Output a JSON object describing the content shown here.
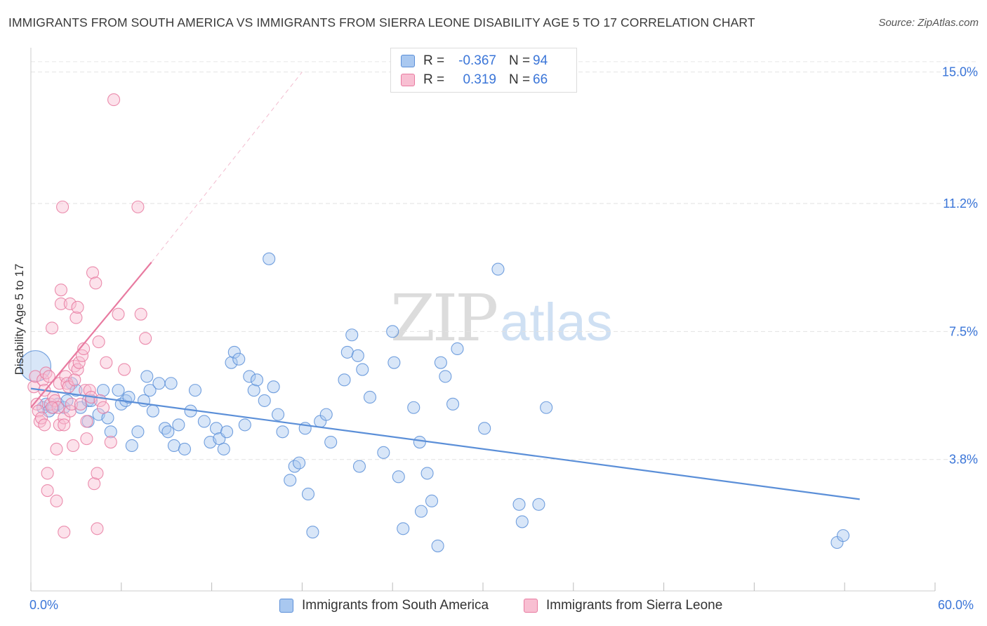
{
  "title": "IMMIGRANTS FROM SOUTH AMERICA VS IMMIGRANTS FROM SIERRA LEONE DISABILITY AGE 5 TO 17 CORRELATION CHART",
  "source": "Source: ZipAtlas.com",
  "watermark": {
    "zip": "ZIP",
    "atlas": "atlas"
  },
  "legend": {
    "rows": [
      {
        "r_label": "R =",
        "r_value": "-0.367",
        "n_label": "N =",
        "n_value": "94",
        "color": "#a9c8f0",
        "border": "#5b8fd8"
      },
      {
        "r_label": "R =",
        "r_value": "0.319",
        "n_label": "N =",
        "n_value": "66",
        "color": "#f8bfd2",
        "border": "#e87aa0"
      }
    ]
  },
  "bottom_legend": [
    {
      "label": "Immigrants from South America",
      "color": "#a9c8f0",
      "border": "#5b8fd8"
    },
    {
      "label": "Immigrants from Sierra Leone",
      "color": "#f8bfd2",
      "border": "#e87aa0"
    }
  ],
  "chart_data": {
    "type": "scatter",
    "title": "IMMIGRANTS FROM SOUTH AMERICA VS IMMIGRANTS FROM SIERRA LEONE DISABILITY AGE 5 TO 17 CORRELATION CHART",
    "xlabel": "",
    "ylabel": "Disability Age 5 to 17",
    "xlim": [
      0,
      60
    ],
    "ylim": [
      0,
      15.5
    ],
    "x_ticks_labels": [
      "0.0%",
      "60.0%"
    ],
    "y_ticks": [
      3.8,
      7.5,
      11.2,
      15.0
    ],
    "y_ticks_labels": [
      "3.8%",
      "7.5%",
      "11.2%",
      "15.0%"
    ],
    "grid": true,
    "legend_position": "top-center",
    "series": [
      {
        "name": "Immigrants from South America",
        "color": "#5b8fd8",
        "fill": "#a9c8f0",
        "trend": {
          "x0": 0.0,
          "y0": 5.85,
          "x1": 55.0,
          "y1": 2.65
        },
        "points": [
          [
            0.3,
            6.5
          ],
          [
            0.8,
            5.3
          ],
          [
            1.0,
            5.4
          ],
          [
            1.2,
            5.2
          ],
          [
            1.5,
            5.3
          ],
          [
            1.8,
            5.4
          ],
          [
            2.2,
            5.3
          ],
          [
            2.4,
            5.5
          ],
          [
            2.7,
            6.0
          ],
          [
            3.0,
            5.8
          ],
          [
            3.3,
            5.3
          ],
          [
            3.8,
            5.5
          ],
          [
            3.8,
            4.9
          ],
          [
            4.0,
            5.5
          ],
          [
            4.5,
            5.1
          ],
          [
            4.8,
            5.8
          ],
          [
            5.1,
            5.0
          ],
          [
            5.3,
            4.6
          ],
          [
            5.8,
            5.8
          ],
          [
            6.0,
            5.4
          ],
          [
            6.3,
            5.5
          ],
          [
            6.5,
            5.6
          ],
          [
            6.7,
            4.2
          ],
          [
            7.1,
            4.6
          ],
          [
            7.5,
            5.5
          ],
          [
            7.7,
            6.2
          ],
          [
            7.9,
            5.8
          ],
          [
            8.1,
            5.2
          ],
          [
            8.5,
            6.0
          ],
          [
            8.9,
            4.7
          ],
          [
            9.1,
            4.6
          ],
          [
            9.3,
            6.0
          ],
          [
            9.5,
            4.2
          ],
          [
            9.8,
            4.8
          ],
          [
            10.2,
            4.1
          ],
          [
            10.6,
            5.2
          ],
          [
            10.9,
            5.8
          ],
          [
            11.5,
            4.9
          ],
          [
            11.9,
            4.3
          ],
          [
            12.3,
            4.7
          ],
          [
            12.5,
            4.4
          ],
          [
            12.8,
            4.1
          ],
          [
            13.0,
            4.6
          ],
          [
            13.3,
            6.6
          ],
          [
            13.5,
            6.9
          ],
          [
            13.8,
            6.7
          ],
          [
            14.2,
            4.8
          ],
          [
            14.5,
            6.2
          ],
          [
            14.8,
            5.8
          ],
          [
            15.0,
            6.1
          ],
          [
            15.5,
            5.5
          ],
          [
            15.8,
            9.6
          ],
          [
            16.1,
            5.9
          ],
          [
            16.4,
            5.1
          ],
          [
            16.7,
            4.6
          ],
          [
            17.2,
            3.2
          ],
          [
            17.5,
            3.6
          ],
          [
            17.8,
            3.7
          ],
          [
            18.2,
            4.7
          ],
          [
            18.4,
            2.8
          ],
          [
            18.7,
            1.7
          ],
          [
            19.2,
            4.9
          ],
          [
            19.6,
            5.1
          ],
          [
            19.9,
            4.3
          ],
          [
            20.8,
            6.1
          ],
          [
            21.0,
            6.9
          ],
          [
            21.3,
            7.4
          ],
          [
            21.7,
            6.8
          ],
          [
            21.8,
            3.6
          ],
          [
            22.0,
            6.4
          ],
          [
            22.5,
            5.6
          ],
          [
            23.4,
            4.0
          ],
          [
            24.0,
            7.5
          ],
          [
            24.1,
            6.6
          ],
          [
            24.4,
            3.3
          ],
          [
            24.7,
            1.8
          ],
          [
            25.4,
            5.3
          ],
          [
            25.8,
            4.3
          ],
          [
            25.9,
            2.3
          ],
          [
            26.3,
            3.4
          ],
          [
            26.6,
            2.6
          ],
          [
            27.0,
            1.3
          ],
          [
            27.2,
            6.6
          ],
          [
            27.5,
            6.2
          ],
          [
            28.0,
            5.4
          ],
          [
            28.3,
            7.0
          ],
          [
            30.1,
            4.7
          ],
          [
            31.0,
            9.3
          ],
          [
            32.4,
            2.5
          ],
          [
            32.6,
            2.0
          ],
          [
            33.7,
            2.5
          ],
          [
            34.2,
            5.3
          ],
          [
            53.5,
            1.4
          ],
          [
            53.9,
            1.6
          ]
        ]
      },
      {
        "name": "Immigrants from Sierra Leone",
        "color": "#e87aa0",
        "fill": "#f8bfd2",
        "trend": {
          "x0": 0.0,
          "y0": 5.3,
          "x1": 8.0,
          "y1": 9.5,
          "ext_x1": 18.0,
          "ext_y1": 15.0
        },
        "points": [
          [
            0.2,
            5.9
          ],
          [
            0.3,
            6.2
          ],
          [
            0.4,
            5.4
          ],
          [
            0.5,
            5.2
          ],
          [
            0.6,
            4.9
          ],
          [
            0.7,
            5.0
          ],
          [
            0.8,
            6.1
          ],
          [
            0.9,
            4.8
          ],
          [
            1.0,
            6.3
          ],
          [
            1.1,
            3.4
          ],
          [
            1.1,
            2.9
          ],
          [
            1.2,
            6.2
          ],
          [
            1.3,
            5.4
          ],
          [
            1.4,
            7.6
          ],
          [
            1.5,
            5.6
          ],
          [
            1.6,
            5.5
          ],
          [
            1.7,
            2.6
          ],
          [
            1.7,
            4.1
          ],
          [
            1.8,
            5.3
          ],
          [
            1.9,
            4.8
          ],
          [
            1.9,
            6.0
          ],
          [
            2.0,
            8.7
          ],
          [
            2.0,
            8.3
          ],
          [
            2.1,
            11.1
          ],
          [
            2.2,
            1.7
          ],
          [
            2.2,
            5.0
          ],
          [
            2.3,
            6.2
          ],
          [
            2.4,
            6.0
          ],
          [
            2.5,
            5.9
          ],
          [
            2.6,
            5.2
          ],
          [
            2.6,
            8.3
          ],
          [
            2.7,
            5.4
          ],
          [
            2.8,
            4.2
          ],
          [
            2.9,
            6.5
          ],
          [
            3.0,
            7.9
          ],
          [
            3.1,
            6.4
          ],
          [
            3.1,
            8.2
          ],
          [
            3.2,
            6.6
          ],
          [
            3.3,
            5.4
          ],
          [
            3.4,
            6.8
          ],
          [
            3.5,
            7.0
          ],
          [
            3.6,
            5.8
          ],
          [
            3.7,
            4.4
          ],
          [
            3.7,
            4.9
          ],
          [
            3.9,
            5.8
          ],
          [
            4.0,
            5.6
          ],
          [
            4.1,
            9.2
          ],
          [
            4.2,
            3.1
          ],
          [
            4.3,
            8.9
          ],
          [
            4.4,
            3.4
          ],
          [
            4.4,
            1.8
          ],
          [
            4.5,
            7.2
          ],
          [
            4.6,
            5.5
          ],
          [
            4.8,
            5.3
          ],
          [
            5.0,
            6.6
          ],
          [
            5.3,
            4.3
          ],
          [
            5.5,
            14.2
          ],
          [
            5.8,
            8.0
          ],
          [
            6.2,
            6.4
          ],
          [
            7.1,
            11.1
          ],
          [
            7.3,
            8.0
          ],
          [
            7.6,
            7.3
          ],
          [
            2.9,
            6.1
          ],
          [
            1.4,
            5.3
          ],
          [
            0.9,
            5.8
          ],
          [
            2.2,
            4.8
          ]
        ]
      }
    ]
  }
}
